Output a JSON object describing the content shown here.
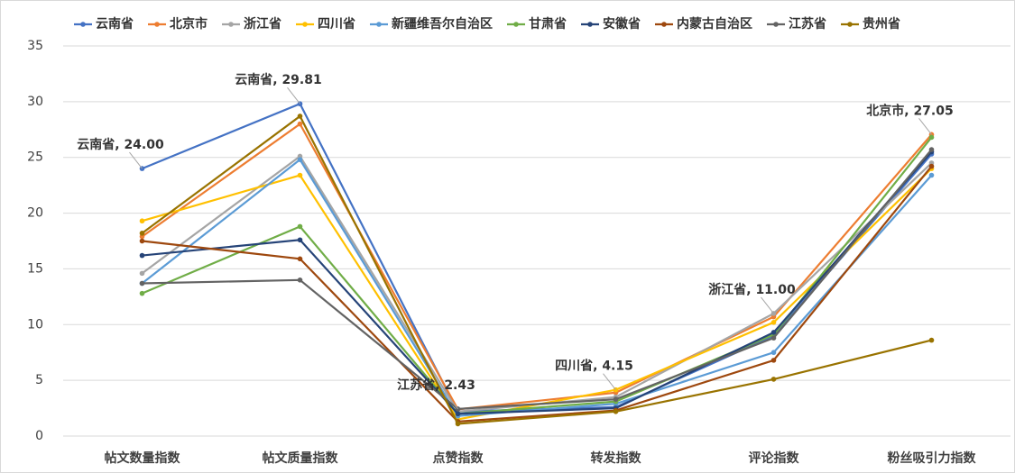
{
  "chart_data": {
    "type": "line",
    "categories": [
      "帖文数量指数",
      "帖文质量指数",
      "点赞指数",
      "转发指数",
      "评论指数",
      "粉丝吸引力指数"
    ],
    "ylim": [
      0,
      35
    ],
    "yticks": [
      0,
      5,
      10,
      15,
      20,
      25,
      30,
      35
    ],
    "grid": true,
    "legend": "top",
    "series": [
      {
        "name": "云南省",
        "color": "#4472c4",
        "values": [
          24.0,
          29.81,
          2.2,
          2.6,
          9.0,
          25.3
        ],
        "value_labels": [
          "云南省, 24.00",
          "云南省, 29.81",
          null,
          null,
          null,
          null
        ]
      },
      {
        "name": "北京市",
        "color": "#ed7d31",
        "values": [
          17.9,
          28.0,
          2.4,
          3.9,
          10.7,
          27.05
        ],
        "value_labels": [
          null,
          null,
          null,
          null,
          null,
          "北京市, 27.05"
        ]
      },
      {
        "name": "浙江省",
        "color": "#a5a5a5",
        "values": [
          14.6,
          25.1,
          2.2,
          3.5,
          11.0,
          24.5
        ],
        "value_labels": [
          null,
          null,
          null,
          null,
          "浙江省, 11.00",
          null
        ]
      },
      {
        "name": "四川省",
        "color": "#ffc000",
        "values": [
          19.3,
          23.4,
          1.5,
          4.15,
          10.2,
          24.0
        ],
        "value_labels": [
          null,
          null,
          null,
          "四川省, 4.15",
          null,
          null
        ]
      },
      {
        "name": "新疆维吾尔自治区",
        "color": "#5b9bd5",
        "values": [
          13.7,
          24.8,
          1.8,
          2.9,
          7.5,
          23.4
        ]
      },
      {
        "name": "甘肃省",
        "color": "#70ad47",
        "values": [
          12.8,
          18.8,
          2.0,
          3.1,
          9.1,
          26.8
        ]
      },
      {
        "name": "安徽省",
        "color": "#264478",
        "values": [
          16.2,
          17.6,
          2.0,
          2.5,
          9.3,
          25.5
        ]
      },
      {
        "name": "内蒙古自治区",
        "color": "#9e480e",
        "values": [
          17.5,
          15.9,
          1.3,
          2.3,
          6.8,
          24.2
        ]
      },
      {
        "name": "江苏省",
        "color": "#636363",
        "values": [
          13.7,
          14.0,
          2.43,
          3.3,
          8.8,
          25.7
        ],
        "value_labels": [
          null,
          null,
          "江苏省, 2.43",
          null,
          null,
          null
        ]
      },
      {
        "name": "贵州省",
        "color": "#997300",
        "values": [
          18.2,
          28.7,
          1.1,
          2.2,
          5.1,
          8.6
        ]
      }
    ]
  }
}
